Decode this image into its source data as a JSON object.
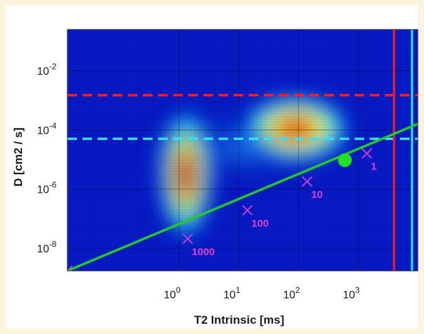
{
  "chart_data": {
    "type": "heatmap",
    "title": "",
    "xlabel": "T2 Intrinsic [ms]",
    "ylabel": "D [cm2 / s]",
    "x_scale": "log",
    "y_scale": "log",
    "xlim": [
      0.0135,
      10000
    ],
    "ylim": [
      1.7e-09,
      0.25
    ],
    "x_ticks": [
      {
        "value": 1,
        "base": "10",
        "exp": "0"
      },
      {
        "value": 10,
        "base": "10",
        "exp": "1"
      },
      {
        "value": 100,
        "base": "10",
        "exp": "2"
      },
      {
        "value": 1000,
        "base": "10",
        "exp": "3"
      }
    ],
    "y_ticks": [
      {
        "value": 1e-08,
        "base": "10",
        "exp": "-8"
      },
      {
        "value": 1e-06,
        "base": "10",
        "exp": "-6"
      },
      {
        "value": 0.0001,
        "base": "10",
        "exp": "-4"
      },
      {
        "value": 0.01,
        "base": "10",
        "exp": "-2"
      }
    ],
    "grid": true,
    "colormap": "jet",
    "peaks": [
      {
        "x_center": 1.3,
        "y_center": 3.2e-06,
        "intensity": 0.88
      },
      {
        "x_center": 90,
        "y_center": 0.00011,
        "intensity": 1.0
      },
      {
        "x_center": 12,
        "y_center": 2.5e-05,
        "intensity": 0.25
      }
    ],
    "horizontal_lines": [
      {
        "y": 0.0015,
        "color": "#ff1e1e",
        "style": "dashed"
      },
      {
        "y": 5e-05,
        "color": "#33e0ff",
        "style": "dashed"
      }
    ],
    "vertical_lines": [
      {
        "x": 4000,
        "color": "#e81c24",
        "style": "solid"
      },
      {
        "x": 8000,
        "color": "#29d3f0",
        "style": "solid"
      }
    ],
    "reference_line": {
      "color": "#22cc22",
      "x": [
        0.0135,
        10000
      ],
      "y": [
        1.7e-09,
        0.00016
      ],
      "markers": [
        {
          "x": 0.0135,
          "y": 1.7e-09,
          "label": ""
        },
        {
          "x": 1.4,
          "y": 2.1e-08,
          "label": "1000"
        },
        {
          "x": 14,
          "y": 1.9e-07,
          "label": "100"
        },
        {
          "x": 140,
          "y": 1.8e-06,
          "label": "10"
        },
        {
          "x": 1400,
          "y": 1.6e-05,
          "label": "1"
        }
      ],
      "marker_color": "#c040d0",
      "label_color": "#e23cd0"
    },
    "highlight_point": {
      "x": 600,
      "y": 9.5e-06,
      "color": "#22e022"
    }
  }
}
